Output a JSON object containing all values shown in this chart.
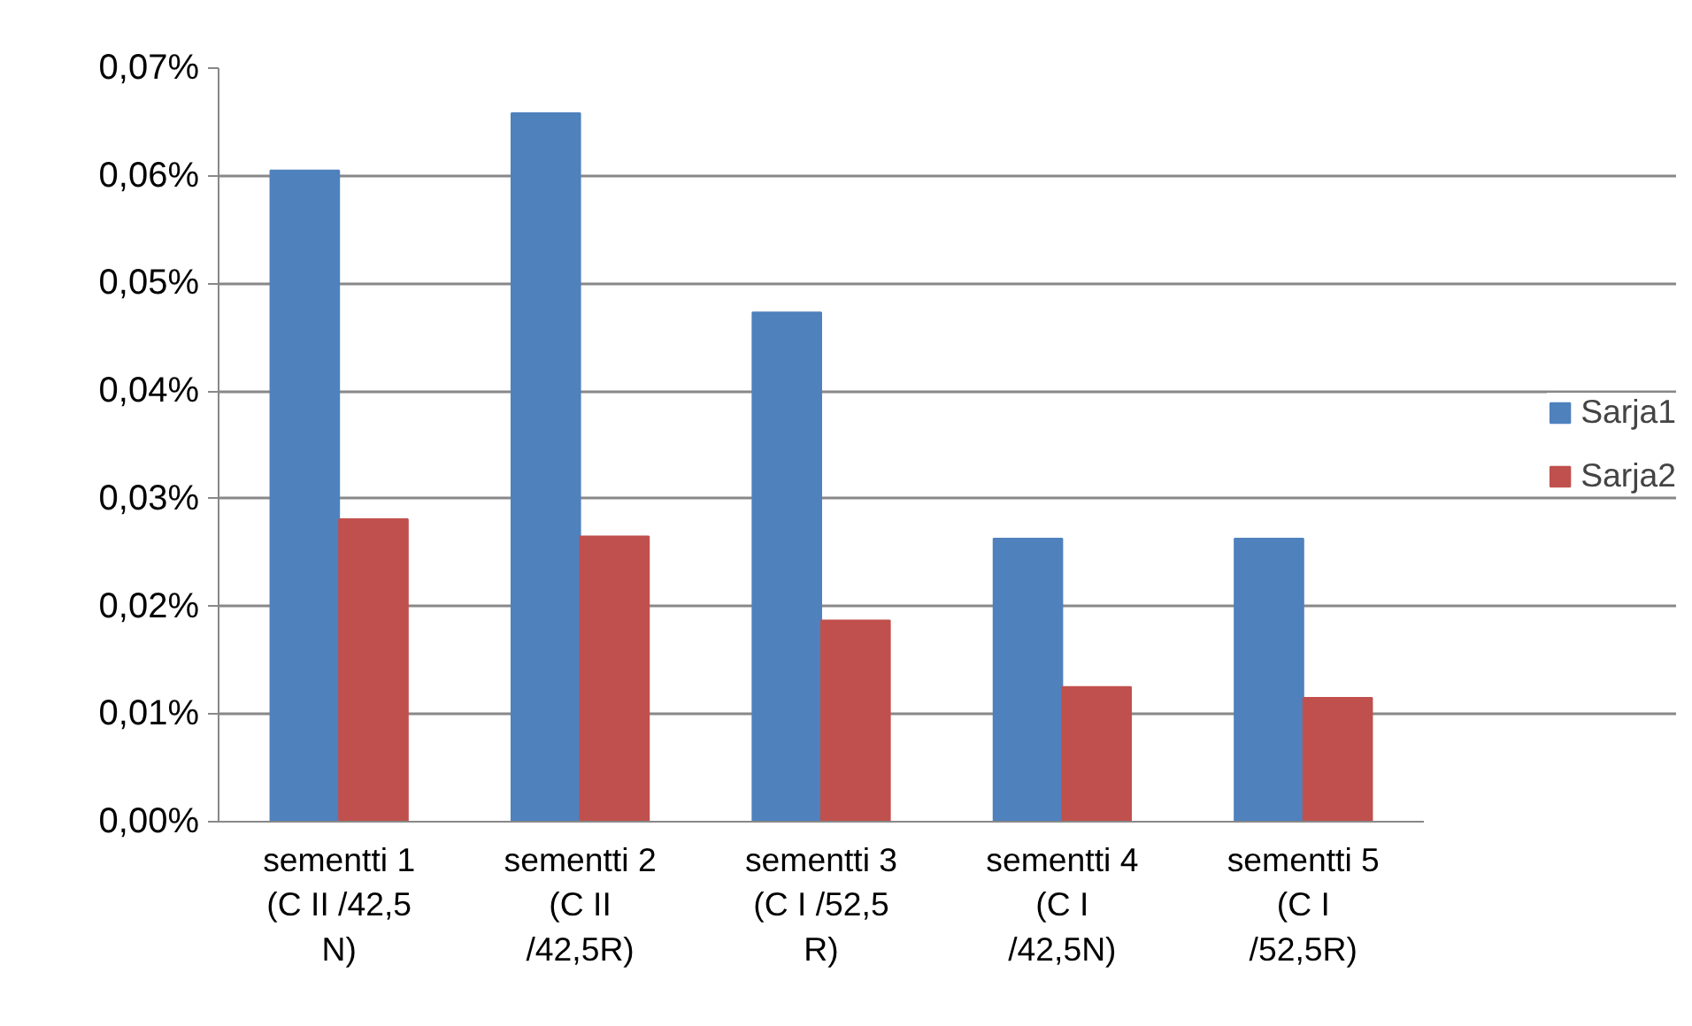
{
  "chart_data": {
    "type": "bar",
    "categories": [
      "sementti 1\n(C II /42,5\nN)",
      "sementti 2\n(C II\n/42,5R)",
      "sementti 3\n(C I /52,5\nR)",
      "sementti 4\n(C I\n/42,5N)",
      "sementti 5\n(C I\n/52,5R)"
    ],
    "series": [
      {
        "name": "Sarja1",
        "color": "#4f81bd",
        "values": [
          0.0605,
          0.0658,
          0.0473,
          0.0263,
          0.0263
        ]
      },
      {
        "name": "Sarja2",
        "color": "#c0504d",
        "values": [
          0.0281,
          0.0265,
          0.0187,
          0.0125,
          0.0115
        ]
      }
    ],
    "ylim": [
      0,
      0.07
    ],
    "yticks": [
      {
        "value": 0,
        "label": "0,00%"
      },
      {
        "value": 0.01,
        "label": "0,01%"
      },
      {
        "value": 0.02,
        "label": "0,02%"
      },
      {
        "value": 0.03,
        "label": "0,03%"
      },
      {
        "value": 0.04,
        "label": "0,04%"
      },
      {
        "value": 0.05,
        "label": "0,05%"
      },
      {
        "value": 0.06,
        "label": "0,06%"
      },
      {
        "value": 0.07,
        "label": "0,07%"
      }
    ],
    "grid": "y",
    "legend": "right"
  }
}
